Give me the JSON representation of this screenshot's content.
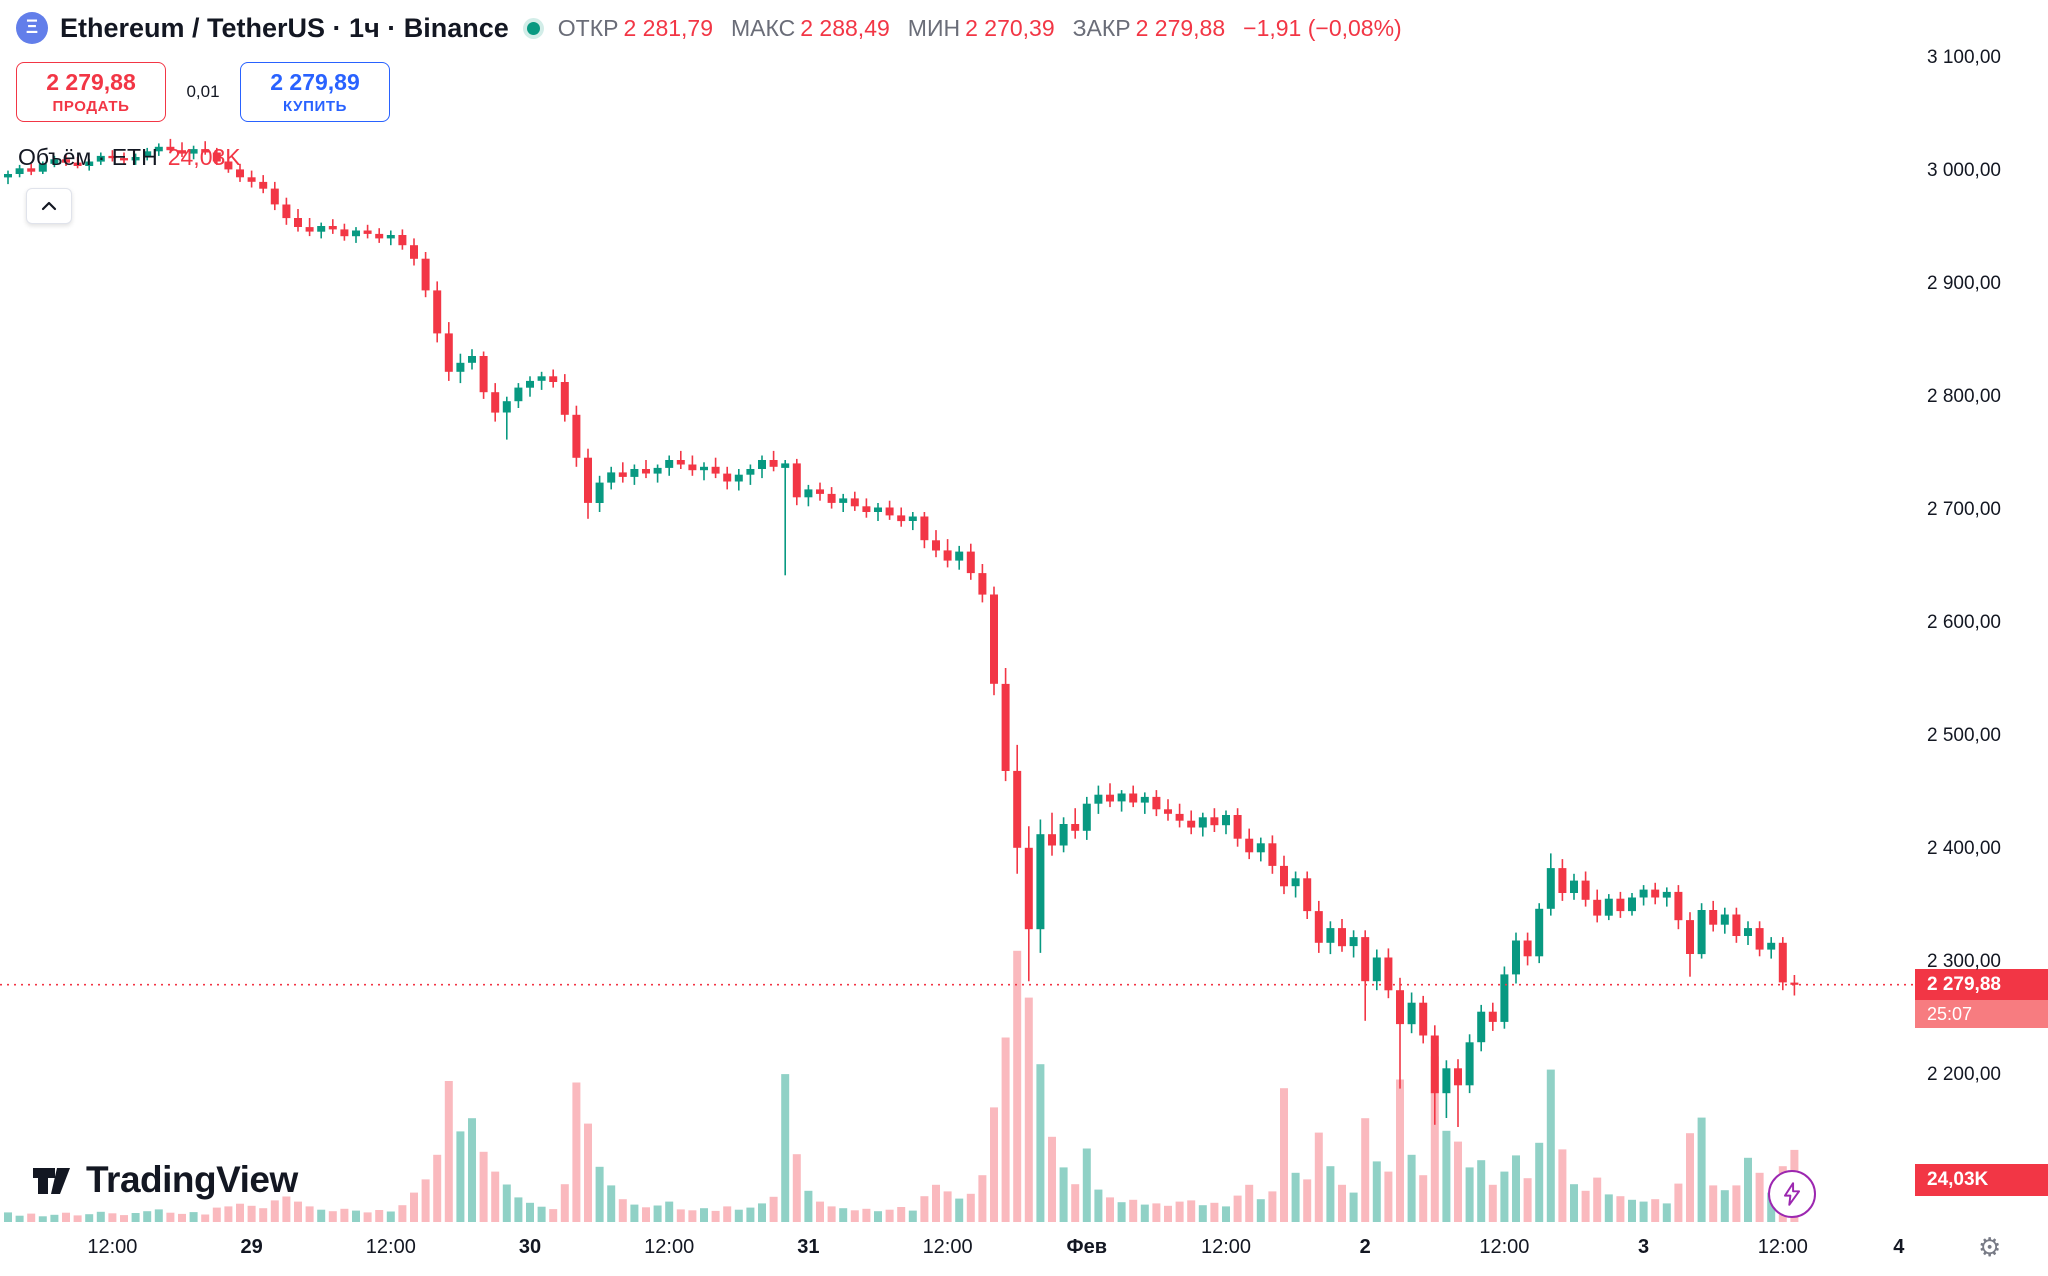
{
  "header": {
    "symbol_title": "Ethereum / TetherUS · 1ч · Binance",
    "ohlc": {
      "open_label": "ОТКР",
      "open": "2 281,79",
      "high_label": "МАКС",
      "high": "2 288,49",
      "low_label": "МИН",
      "low": "2 270,39",
      "close_label": "ЗАКР",
      "close": "2 279,88",
      "change": "−1,91 (−0,08%)"
    },
    "sell": {
      "price": "2 279,88",
      "label": "ПРОДАТЬ"
    },
    "spread": "0,01",
    "buy": {
      "price": "2 279,89",
      "label": "КУПИТЬ"
    },
    "volume_legend": {
      "label": "Объём · ETH",
      "value": "24,03K"
    }
  },
  "price_scale": {
    "current_price_label": "2 279,88",
    "countdown": "25:07",
    "volume_badge": "24,03K"
  },
  "footer": {
    "logo_text": "TradingView"
  },
  "colors": {
    "up": "#089981",
    "down": "#f23645",
    "buy_blue": "#2962ff",
    "axis_text": "#131722",
    "separator": "#e0e3eb",
    "boost_purple": "#9c27b0"
  },
  "chart_data": {
    "type": "candlestick",
    "title": "Ethereum / TetherUS · 1ч · Binance",
    "symbol": "Ethereum / TetherUS",
    "interval": "1ч",
    "exchange": "Binance",
    "legend_position": "top-left",
    "grid": false,
    "ylim": [
      2200,
      3100
    ],
    "current_price": 2279.88,
    "up_color": "#089981",
    "down_color": "#f23645",
    "vol_up_color": "rgba(8,153,129,0.45)",
    "vol_down_color": "rgba(242,54,69,0.35)",
    "volume_unit": "K ETH",
    "y_labels": [
      "3 100,00",
      "3 000,00",
      "2 900,00",
      "2 800,00",
      "2 700,00",
      "2 600,00",
      "2 500,00",
      "2 400,00",
      "2 300,00",
      "2 200,00"
    ],
    "x_labels": [
      {
        "text": "12:00",
        "i": 9
      },
      {
        "text": "29",
        "i": 21,
        "major": true
      },
      {
        "text": "12:00",
        "i": 33
      },
      {
        "text": "30",
        "i": 45,
        "major": true
      },
      {
        "text": "12:00",
        "i": 57
      },
      {
        "text": "31",
        "i": 69,
        "major": true
      },
      {
        "text": "12:00",
        "i": 81
      },
      {
        "text": "Фев",
        "i": 93,
        "major": true
      },
      {
        "text": "12:00",
        "i": 105
      },
      {
        "text": "2",
        "i": 117,
        "major": true
      },
      {
        "text": "12:00",
        "i": 129
      },
      {
        "text": "3",
        "i": 141,
        "major": true
      },
      {
        "text": "12:00",
        "i": 153
      },
      {
        "text": "4",
        "i": 163,
        "major": true
      }
    ],
    "candles": [
      [
        2994,
        3000,
        2988,
        2997
      ],
      [
        2997,
        3005,
        2994,
        3002
      ],
      [
        3002,
        3006,
        2996,
        2999
      ],
      [
        2999,
        3008,
        2997,
        3006
      ],
      [
        3006,
        3013,
        3003,
        3010
      ],
      [
        3010,
        3014,
        3004,
        3007
      ],
      [
        3007,
        3012,
        3002,
        3004
      ],
      [
        3004,
        3010,
        3000,
        3008
      ],
      [
        3008,
        3016,
        3005,
        3013
      ],
      [
        3013,
        3018,
        3008,
        3011
      ],
      [
        3011,
        3016,
        3006,
        3009
      ],
      [
        3009,
        3015,
        3005,
        3012
      ],
      [
        3012,
        3020,
        3009,
        3017
      ],
      [
        3017,
        3024,
        3013,
        3021
      ],
      [
        3021,
        3028,
        3017,
        3018
      ],
      [
        3018,
        3025,
        3012,
        3015
      ],
      [
        3015,
        3022,
        3010,
        3019
      ],
      [
        3019,
        3026,
        3014,
        3016
      ],
      [
        3016,
        3020,
        3005,
        3008
      ],
      [
        3008,
        3013,
        2998,
        3001
      ],
      [
        3001,
        3006,
        2990,
        2994
      ],
      [
        2994,
        3000,
        2985,
        2990
      ],
      [
        2990,
        2996,
        2980,
        2984
      ],
      [
        2984,
        2990,
        2965,
        2970
      ],
      [
        2970,
        2976,
        2952,
        2958
      ],
      [
        2958,
        2966,
        2946,
        2950
      ],
      [
        2950,
        2958,
        2942,
        2946
      ],
      [
        2946,
        2954,
        2940,
        2951
      ],
      [
        2951,
        2957,
        2944,
        2948
      ],
      [
        2948,
        2953,
        2938,
        2942
      ],
      [
        2942,
        2950,
        2936,
        2947
      ],
      [
        2947,
        2952,
        2940,
        2944
      ],
      [
        2944,
        2949,
        2936,
        2940
      ],
      [
        2940,
        2947,
        2934,
        2943
      ],
      [
        2943,
        2948,
        2930,
        2934
      ],
      [
        2934,
        2940,
        2916,
        2922
      ],
      [
        2922,
        2928,
        2888,
        2894
      ],
      [
        2894,
        2902,
        2848,
        2856
      ],
      [
        2856,
        2866,
        2814,
        2822
      ],
      [
        2822,
        2838,
        2812,
        2830
      ],
      [
        2830,
        2842,
        2824,
        2836
      ],
      [
        2836,
        2840,
        2798,
        2804
      ],
      [
        2804,
        2812,
        2778,
        2786
      ],
      [
        2786,
        2800,
        2762,
        2796
      ],
      [
        2796,
        2812,
        2790,
        2808
      ],
      [
        2808,
        2818,
        2800,
        2814
      ],
      [
        2814,
        2822,
        2806,
        2818
      ],
      [
        2818,
        2824,
        2808,
        2813
      ],
      [
        2813,
        2820,
        2778,
        2784
      ],
      [
        2784,
        2792,
        2738,
        2746
      ],
      [
        2746,
        2754,
        2692,
        2706
      ],
      [
        2706,
        2730,
        2698,
        2724
      ],
      [
        2724,
        2738,
        2718,
        2733
      ],
      [
        2733,
        2742,
        2724,
        2729
      ],
      [
        2729,
        2740,
        2722,
        2736
      ],
      [
        2736,
        2744,
        2728,
        2732
      ],
      [
        2732,
        2740,
        2724,
        2737
      ],
      [
        2737,
        2748,
        2730,
        2744
      ],
      [
        2744,
        2752,
        2736,
        2740
      ],
      [
        2740,
        2748,
        2730,
        2735
      ],
      [
        2735,
        2742,
        2726,
        2738
      ],
      [
        2738,
        2746,
        2728,
        2732
      ],
      [
        2732,
        2738,
        2718,
        2725
      ],
      [
        2725,
        2736,
        2717,
        2731
      ],
      [
        2731,
        2740,
        2722,
        2736
      ],
      [
        2736,
        2748,
        2728,
        2744
      ],
      [
        2744,
        2752,
        2734,
        2738
      ],
      [
        2737,
        2744,
        2642,
        2741
      ],
      [
        2741,
        2745,
        2704,
        2711
      ],
      [
        2711,
        2722,
        2703,
        2718
      ],
      [
        2718,
        2724,
        2708,
        2714
      ],
      [
        2714,
        2720,
        2701,
        2706
      ],
      [
        2706,
        2714,
        2698,
        2710
      ],
      [
        2710,
        2716,
        2699,
        2703
      ],
      [
        2703,
        2710,
        2693,
        2698
      ],
      [
        2698,
        2706,
        2690,
        2702
      ],
      [
        2702,
        2708,
        2691,
        2695
      ],
      [
        2695,
        2702,
        2685,
        2690
      ],
      [
        2690,
        2698,
        2682,
        2694
      ],
      [
        2694,
        2698,
        2666,
        2673
      ],
      [
        2673,
        2682,
        2658,
        2664
      ],
      [
        2664,
        2674,
        2649,
        2655
      ],
      [
        2655,
        2668,
        2647,
        2663
      ],
      [
        2663,
        2670,
        2638,
        2644
      ],
      [
        2644,
        2652,
        2618,
        2625
      ],
      [
        2625,
        2632,
        2536,
        2546
      ],
      [
        2546,
        2560,
        2460,
        2469
      ],
      [
        2469,
        2492,
        2378,
        2401
      ],
      [
        2401,
        2420,
        2283,
        2329
      ],
      [
        2329,
        2426,
        2308,
        2413
      ],
      [
        2413,
        2432,
        2394,
        2403
      ],
      [
        2403,
        2428,
        2397,
        2422
      ],
      [
        2422,
        2436,
        2409,
        2416
      ],
      [
        2416,
        2446,
        2408,
        2440
      ],
      [
        2440,
        2456,
        2431,
        2448
      ],
      [
        2448,
        2458,
        2437,
        2442
      ],
      [
        2442,
        2452,
        2433,
        2449
      ],
      [
        2449,
        2456,
        2437,
        2441
      ],
      [
        2441,
        2450,
        2431,
        2446
      ],
      [
        2446,
        2452,
        2429,
        2435
      ],
      [
        2435,
        2444,
        2425,
        2431
      ],
      [
        2431,
        2440,
        2419,
        2425
      ],
      [
        2425,
        2434,
        2413,
        2419
      ],
      [
        2419,
        2432,
        2411,
        2428
      ],
      [
        2428,
        2436,
        2415,
        2421
      ],
      [
        2421,
        2434,
        2413,
        2430
      ],
      [
        2430,
        2436,
        2402,
        2409
      ],
      [
        2409,
        2418,
        2391,
        2397
      ],
      [
        2397,
        2410,
        2389,
        2405
      ],
      [
        2405,
        2412,
        2378,
        2385
      ],
      [
        2385,
        2394,
        2360,
        2367
      ],
      [
        2367,
        2380,
        2357,
        2374
      ],
      [
        2374,
        2380,
        2338,
        2345
      ],
      [
        2345,
        2354,
        2308,
        2317
      ],
      [
        2317,
        2336,
        2307,
        2330
      ],
      [
        2330,
        2338,
        2309,
        2314
      ],
      [
        2314,
        2328,
        2304,
        2322
      ],
      [
        2322,
        2328,
        2248,
        2283
      ],
      [
        2283,
        2311,
        2275,
        2304
      ],
      [
        2304,
        2312,
        2268,
        2275
      ],
      [
        2275,
        2286,
        2188,
        2245
      ],
      [
        2245,
        2273,
        2237,
        2264
      ],
      [
        2264,
        2270,
        2228,
        2235
      ],
      [
        2235,
        2244,
        2156,
        2184
      ],
      [
        2184,
        2213,
        2162,
        2206
      ],
      [
        2206,
        2214,
        2154,
        2191
      ],
      [
        2191,
        2236,
        2184,
        2229
      ],
      [
        2229,
        2262,
        2221,
        2256
      ],
      [
        2256,
        2264,
        2239,
        2247
      ],
      [
        2247,
        2296,
        2241,
        2289
      ],
      [
        2289,
        2326,
        2281,
        2319
      ],
      [
        2319,
        2326,
        2297,
        2305
      ],
      [
        2305,
        2352,
        2299,
        2347
      ],
      [
        2347,
        2396,
        2341,
        2383
      ],
      [
        2383,
        2391,
        2354,
        2361
      ],
      [
        2361,
        2378,
        2355,
        2372
      ],
      [
        2372,
        2380,
        2349,
        2355
      ],
      [
        2355,
        2364,
        2335,
        2341
      ],
      [
        2341,
        2360,
        2337,
        2356
      ],
      [
        2356,
        2362,
        2339,
        2345
      ],
      [
        2345,
        2361,
        2341,
        2357
      ],
      [
        2357,
        2368,
        2350,
        2364
      ],
      [
        2364,
        2370,
        2351,
        2357
      ],
      [
        2357,
        2366,
        2349,
        2362
      ],
      [
        2362,
        2368,
        2329,
        2337
      ],
      [
        2337,
        2344,
        2287,
        2307
      ],
      [
        2307,
        2352,
        2303,
        2346
      ],
      [
        2346,
        2354,
        2327,
        2333
      ],
      [
        2333,
        2348,
        2325,
        2342
      ],
      [
        2342,
        2348,
        2317,
        2323
      ],
      [
        2323,
        2336,
        2315,
        2330
      ],
      [
        2330,
        2336,
        2305,
        2311
      ],
      [
        2311,
        2322,
        2303,
        2317
      ],
      [
        2317,
        2322,
        2275,
        2282
      ],
      [
        2281.79,
        2288.49,
        2270.39,
        2279.88
      ]
    ],
    "volumes_k": [
      3.2,
      2.1,
      2.8,
      1.9,
      2.4,
      3.1,
      2.2,
      2.6,
      3.4,
      2.9,
      2.3,
      3.0,
      3.6,
      4.2,
      3.1,
      2.7,
      3.3,
      2.5,
      4.8,
      5.2,
      6.1,
      5.4,
      4.6,
      7.2,
      8.5,
      6.8,
      5.2,
      4.1,
      3.6,
      4.4,
      3.8,
      3.2,
      4.0,
      3.5,
      5.6,
      9.8,
      14.2,
      22.4,
      47.0,
      30.2,
      34.6,
      23.4,
      16.8,
      12.5,
      8.2,
      6.4,
      5.1,
      4.3,
      12.6,
      46.5,
      32.8,
      18.4,
      12.2,
      7.6,
      5.8,
      4.9,
      5.5,
      6.8,
      4.2,
      3.9,
      4.6,
      3.7,
      5.2,
      4.1,
      4.8,
      6.2,
      8.4,
      49.3,
      22.6,
      10.4,
      6.8,
      5.2,
      4.6,
      3.9,
      4.4,
      3.6,
      4.1,
      5.0,
      3.8,
      8.6,
      12.4,
      10.2,
      7.8,
      9.4,
      15.6,
      38.2,
      61.5,
      90.4,
      74.8,
      52.6,
      28.4,
      18.2,
      12.6,
      24.5,
      10.8,
      8.2,
      6.6,
      7.4,
      5.8,
      6.2,
      5.4,
      6.8,
      7.2,
      5.6,
      6.4,
      5.2,
      8.8,
      12.4,
      7.6,
      10.2,
      44.6,
      16.4,
      14.2,
      29.8,
      18.6,
      12.4,
      9.8,
      34.6,
      20.2,
      16.8,
      47.5,
      22.4,
      15.6,
      55.2,
      30.4,
      26.8,
      18.2,
      20.6,
      12.4,
      16.8,
      22.2,
      14.6,
      26.4,
      50.8,
      24.2,
      12.6,
      10.4,
      14.8,
      9.2,
      8.6,
      7.4,
      6.8,
      7.6,
      6.2,
      12.8,
      29.6,
      34.8,
      12.2,
      10.6,
      12.2,
      21.4,
      16.4,
      9.8,
      18.6,
      24.03
    ]
  }
}
